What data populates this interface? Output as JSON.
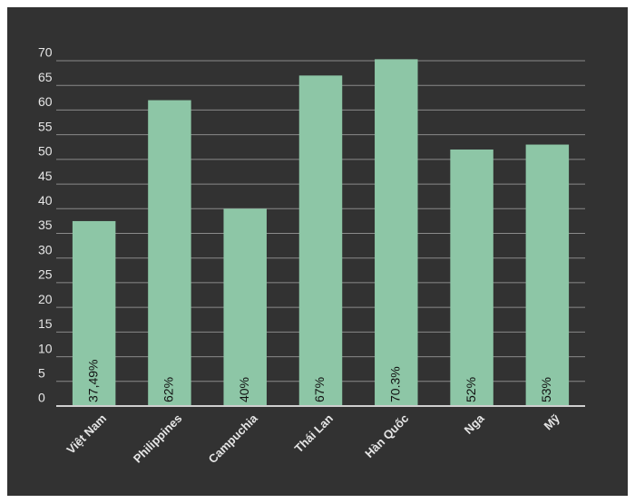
{
  "chart_data": {
    "type": "bar",
    "categories": [
      "Việt Nam",
      "Philippines",
      "Campuchia",
      "Thái Lan",
      "Hàn Quốc",
      "Nga",
      "Mỹ"
    ],
    "values": [
      37.49,
      62,
      40,
      67,
      70.3,
      52,
      53
    ],
    "value_labels": [
      "37,49%",
      "62%",
      "40%",
      "67%",
      "70.3%",
      "52%",
      "53%"
    ],
    "color": "#8dc6a6",
    "ylim": [
      0,
      70
    ],
    "yticks": [
      0,
      5,
      10,
      15,
      20,
      25,
      30,
      35,
      40,
      45,
      50,
      55,
      60,
      65,
      70
    ],
    "grid": true
  }
}
